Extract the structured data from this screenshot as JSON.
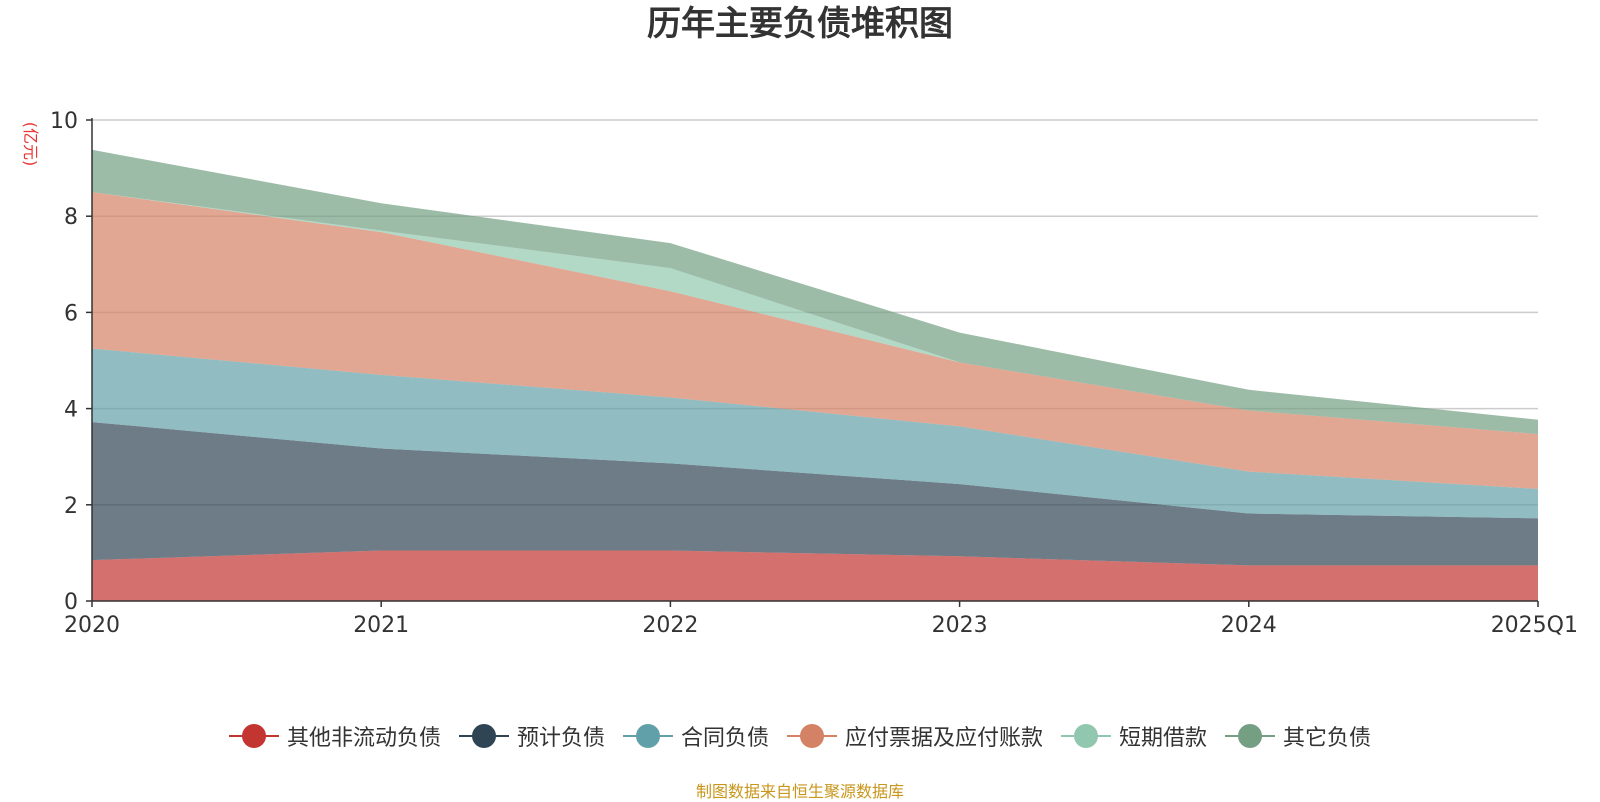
{
  "chart_data": {
    "type": "area",
    "stacked": true,
    "title": "历年主要负债堆积图",
    "ylabel": "(亿元)",
    "xlabel": "",
    "categories": [
      "2020",
      "2021",
      "2022",
      "2023",
      "2024",
      "2025Q1"
    ],
    "ylim": [
      0,
      10
    ],
    "yticks": [
      0,
      2,
      4,
      6,
      8,
      10
    ],
    "grid": true,
    "legend_position": "bottom",
    "series": [
      {
        "name": "其他非流动负债",
        "color": "#c23531",
        "values": [
          0.85,
          1.05,
          1.05,
          0.93,
          0.74,
          0.74
        ]
      },
      {
        "name": "预计负债",
        "color": "#2f4554",
        "values": [
          2.87,
          2.12,
          1.81,
          1.5,
          1.08,
          0.98
        ]
      },
      {
        "name": "合同负债",
        "color": "#61a0a8",
        "values": [
          1.53,
          1.53,
          1.37,
          1.2,
          0.87,
          0.61
        ]
      },
      {
        "name": "应付票据及应付账款",
        "color": "#d48265",
        "values": [
          3.25,
          2.97,
          2.21,
          1.33,
          1.27,
          1.14
        ]
      },
      {
        "name": "短期借款",
        "color": "#91c7ae",
        "values": [
          0.0,
          0.03,
          0.48,
          0.0,
          0.0,
          0.0
        ]
      },
      {
        "name": "其它负债",
        "color": "#749f83",
        "values": [
          0.88,
          0.57,
          0.52,
          0.62,
          0.43,
          0.3
        ]
      }
    ]
  },
  "footer": {
    "source": "制图数据来自恒生聚源数据库"
  }
}
